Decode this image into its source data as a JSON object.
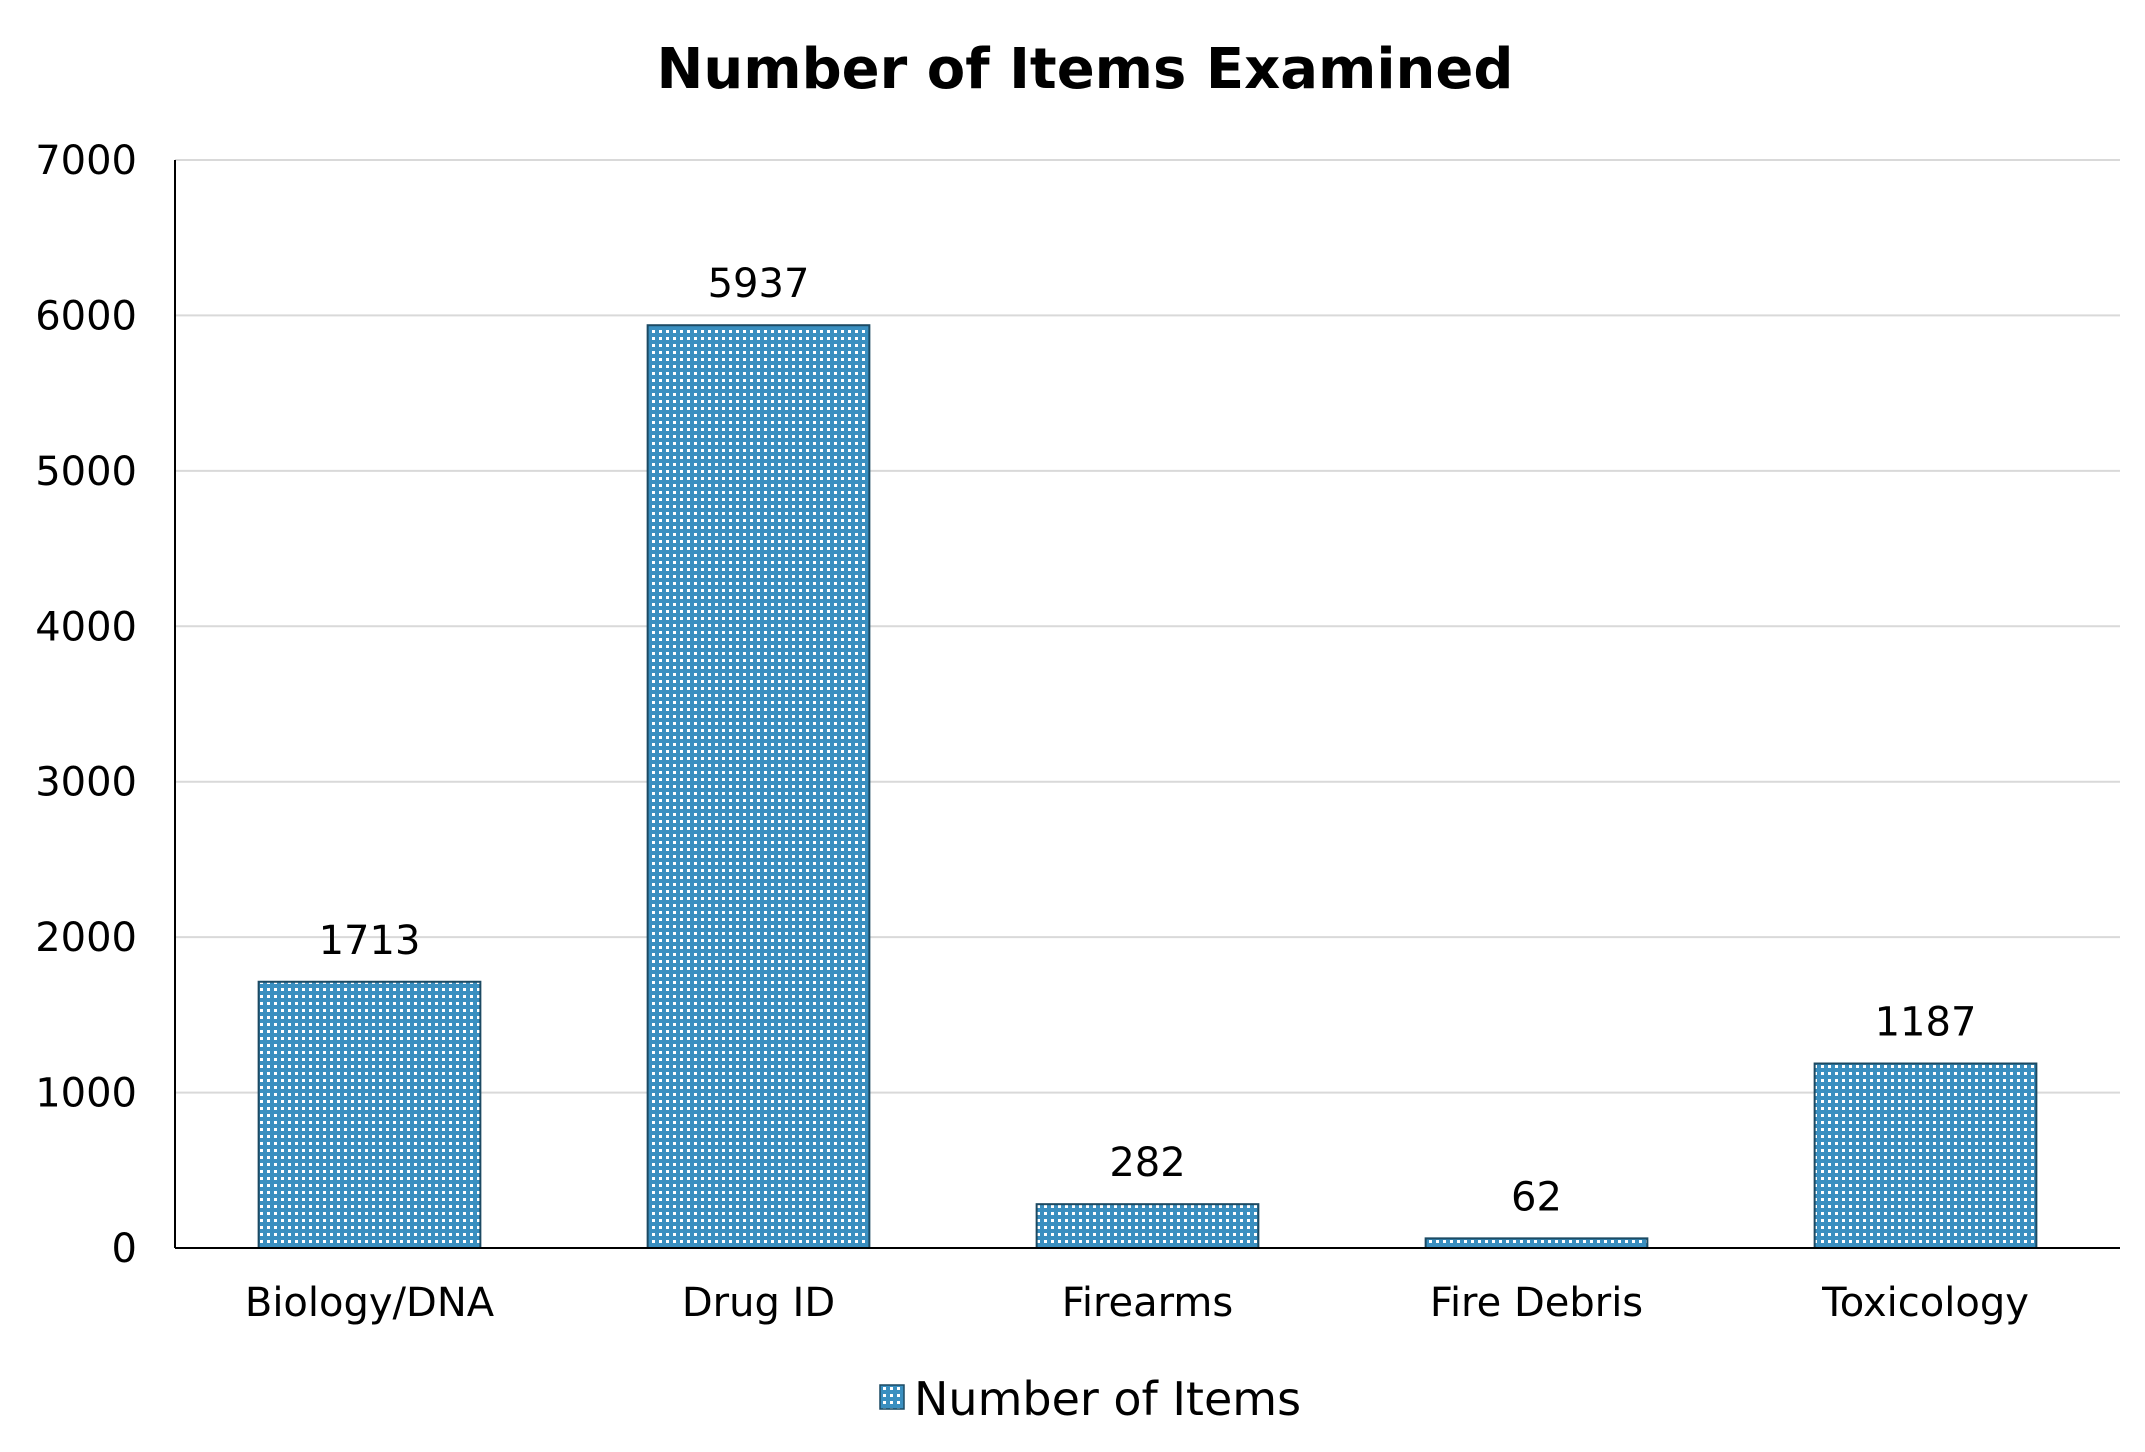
{
  "chart_data": {
    "type": "bar",
    "title": "Number of Items Examined",
    "xlabel": "",
    "ylabel": "",
    "categories": [
      "Biology/DNA",
      "Drug ID",
      "Firearms",
      "Fire Debris",
      "Toxicology"
    ],
    "series": [
      {
        "name": "Number of Items",
        "values": [
          1713,
          5937,
          282,
          62,
          1187
        ],
        "color": "#3a8fc0"
      }
    ],
    "data_labels": [
      "1713",
      "5937",
      "282",
      "62",
      "1187"
    ],
    "ylim": [
      0,
      7000
    ],
    "yticks": [
      0,
      1000,
      2000,
      3000,
      4000,
      5000,
      6000,
      7000
    ],
    "ytick_labels": [
      "0",
      "1000",
      "2000",
      "3000",
      "4000",
      "5000",
      "6000",
      "7000"
    ],
    "grid": true,
    "legend": {
      "position": "bottom-center",
      "entries": [
        "Number of Items"
      ]
    },
    "colors": {
      "bar_fill": "#3a8fc0",
      "bar_outline": "#1c4a63",
      "gridline": "#d9d9d9",
      "axis": "#000000"
    }
  }
}
